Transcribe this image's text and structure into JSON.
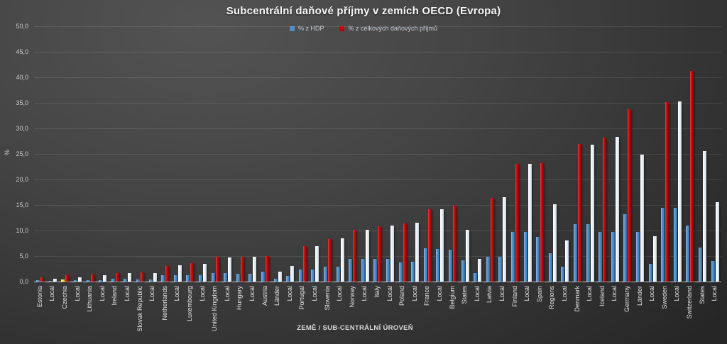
{
  "title": "Subcentrální daňové příjmy v zemích OECD (Evropa)",
  "legend": {
    "series1": "% z HDP",
    "series2": "% z celkových daňových příjmů"
  },
  "axes": {
    "y_title": "%",
    "x_title": "ZEMĚ / SUB-CENTRÁLNÍ ÚROVEŇ",
    "y_ticks": [
      "0,0",
      "5,0",
      "10,0",
      "15,0",
      "20,0",
      "25,0",
      "30,0",
      "35,0",
      "40,0",
      "45,0",
      "50,0"
    ]
  },
  "colors": {
    "hdp_bar": "#4183c4",
    "total_country_bar": "#c00808",
    "total_sublevel_bar": "#eef3f8",
    "highlight_bar": "#ffe93b",
    "background": "#3a3a3a",
    "text": "#e2e2e2"
  },
  "chart_data": {
    "type": "bar",
    "title": "Subcentrální daňové příjmy v zemích OECD (Evropa)",
    "xlabel": "ZEMĚ / SUB-CENTRÁLNÍ ÚROVEŇ",
    "ylabel": "%",
    "ylim": [
      0,
      50
    ],
    "ytick_step": 5,
    "grid": true,
    "legend_position": "top-center",
    "series": [
      {
        "name": "% z HDP",
        "color": "#4183c4"
      },
      {
        "name": "% z celkových daňových příjmů",
        "color": "#c00808",
        "note": "rendered white for sub-central level rows (Local/Länder/States/Regions)"
      }
    ],
    "highlight_note": "Czechia HDP bar is highlighted yellow",
    "points": [
      {
        "label": "Estonia",
        "hdp": 0.3,
        "total": 0.8,
        "level": "country"
      },
      {
        "label": "Local",
        "hdp": 0.2,
        "total": 0.6,
        "level": "sub"
      },
      {
        "label": "Czechia",
        "hdp": 0.4,
        "total": 1.2,
        "level": "country",
        "highlight": true
      },
      {
        "label": "Local",
        "hdp": 0.3,
        "total": 0.9,
        "level": "sub"
      },
      {
        "label": "Lithuania",
        "hdp": 0.3,
        "total": 1.4,
        "level": "country"
      },
      {
        "label": "Local",
        "hdp": 0.3,
        "total": 1.3,
        "level": "sub"
      },
      {
        "label": "Ireland",
        "hdp": 0.5,
        "total": 1.7,
        "level": "country"
      },
      {
        "label": "Local",
        "hdp": 0.5,
        "total": 1.6,
        "level": "sub"
      },
      {
        "label": "Slovak Republic",
        "hdp": 0.4,
        "total": 1.8,
        "level": "country"
      },
      {
        "label": "Local",
        "hdp": 0.4,
        "total": 1.7,
        "level": "sub"
      },
      {
        "label": "Netherlands",
        "hdp": 1.2,
        "total": 3.1,
        "level": "country"
      },
      {
        "label": "Local",
        "hdp": 1.2,
        "total": 3.2,
        "level": "sub"
      },
      {
        "label": "Luxembourg",
        "hdp": 1.3,
        "total": 3.6,
        "level": "country"
      },
      {
        "label": "Local",
        "hdp": 1.3,
        "total": 3.5,
        "level": "sub"
      },
      {
        "label": "United Kingdom",
        "hdp": 1.6,
        "total": 4.8,
        "level": "country"
      },
      {
        "label": "Local",
        "hdp": 1.6,
        "total": 4.7,
        "level": "sub"
      },
      {
        "label": "Hungary",
        "hdp": 1.5,
        "total": 4.9,
        "level": "country"
      },
      {
        "label": "Local",
        "hdp": 1.5,
        "total": 4.8,
        "level": "sub"
      },
      {
        "label": "Austria",
        "hdp": 1.9,
        "total": 5.0,
        "level": "country"
      },
      {
        "label": "Länder",
        "hdp": 0.6,
        "total": 1.9,
        "level": "sub"
      },
      {
        "label": "Local",
        "hdp": 1.1,
        "total": 3.0,
        "level": "sub"
      },
      {
        "label": "Portugal",
        "hdp": 2.3,
        "total": 6.9,
        "level": "country"
      },
      {
        "label": "Local",
        "hdp": 2.3,
        "total": 7.0,
        "level": "sub"
      },
      {
        "label": "Slovenia",
        "hdp": 2.9,
        "total": 8.4,
        "level": "country"
      },
      {
        "label": "Local",
        "hdp": 2.9,
        "total": 8.5,
        "level": "sub"
      },
      {
        "label": "Norway",
        "hdp": 4.4,
        "total": 10.1,
        "level": "country"
      },
      {
        "label": "Local",
        "hdp": 4.4,
        "total": 10.2,
        "level": "sub"
      },
      {
        "label": "Italy",
        "hdp": 4.5,
        "total": 10.9,
        "level": "country"
      },
      {
        "label": "Local",
        "hdp": 4.5,
        "total": 11.0,
        "level": "sub"
      },
      {
        "label": "Poland",
        "hdp": 3.8,
        "total": 11.4,
        "level": "country"
      },
      {
        "label": "Local",
        "hdp": 3.9,
        "total": 11.5,
        "level": "sub"
      },
      {
        "label": "France",
        "hdp": 6.5,
        "total": 14.2,
        "level": "country"
      },
      {
        "label": "Local",
        "hdp": 6.4,
        "total": 14.2,
        "level": "sub"
      },
      {
        "label": "Belgium",
        "hdp": 6.3,
        "total": 14.8,
        "level": "country"
      },
      {
        "label": "States",
        "hdp": 4.2,
        "total": 10.2,
        "level": "sub"
      },
      {
        "label": "Local",
        "hdp": 1.7,
        "total": 4.5,
        "level": "sub"
      },
      {
        "label": "Latvia",
        "hdp": 4.8,
        "total": 16.4,
        "level": "country"
      },
      {
        "label": "Local",
        "hdp": 4.8,
        "total": 16.5,
        "level": "sub"
      },
      {
        "label": "Finland",
        "hdp": 9.7,
        "total": 23.0,
        "level": "country"
      },
      {
        "label": "Local",
        "hdp": 9.7,
        "total": 23.1,
        "level": "sub"
      },
      {
        "label": "Spain",
        "hdp": 8.7,
        "total": 23.2,
        "level": "country"
      },
      {
        "label": "Regions",
        "hdp": 5.6,
        "total": 15.2,
        "level": "sub"
      },
      {
        "label": "Local",
        "hdp": 2.9,
        "total": 8.0,
        "level": "sub"
      },
      {
        "label": "Denmark",
        "hdp": 11.3,
        "total": 26.9,
        "level": "country"
      },
      {
        "label": "Local",
        "hdp": 11.3,
        "total": 26.8,
        "level": "sub"
      },
      {
        "label": "Iceland",
        "hdp": 9.7,
        "total": 28.2,
        "level": "country"
      },
      {
        "label": "Local",
        "hdp": 9.7,
        "total": 28.3,
        "level": "sub"
      },
      {
        "label": "Germany",
        "hdp": 13.2,
        "total": 33.7,
        "level": "country"
      },
      {
        "label": "Länder",
        "hdp": 9.7,
        "total": 24.8,
        "level": "sub"
      },
      {
        "label": "Local",
        "hdp": 3.5,
        "total": 8.9,
        "level": "sub"
      },
      {
        "label": "Sweden",
        "hdp": 14.4,
        "total": 35.2,
        "level": "country"
      },
      {
        "label": "Local",
        "hdp": 14.4,
        "total": 35.3,
        "level": "sub"
      },
      {
        "label": "Switzerland",
        "hdp": 11.0,
        "total": 41.3,
        "level": "country"
      },
      {
        "label": "States",
        "hdp": 6.7,
        "total": 25.6,
        "level": "sub"
      },
      {
        "label": "Local",
        "hdp": 4.0,
        "total": 15.6,
        "level": "sub"
      }
    ]
  }
}
